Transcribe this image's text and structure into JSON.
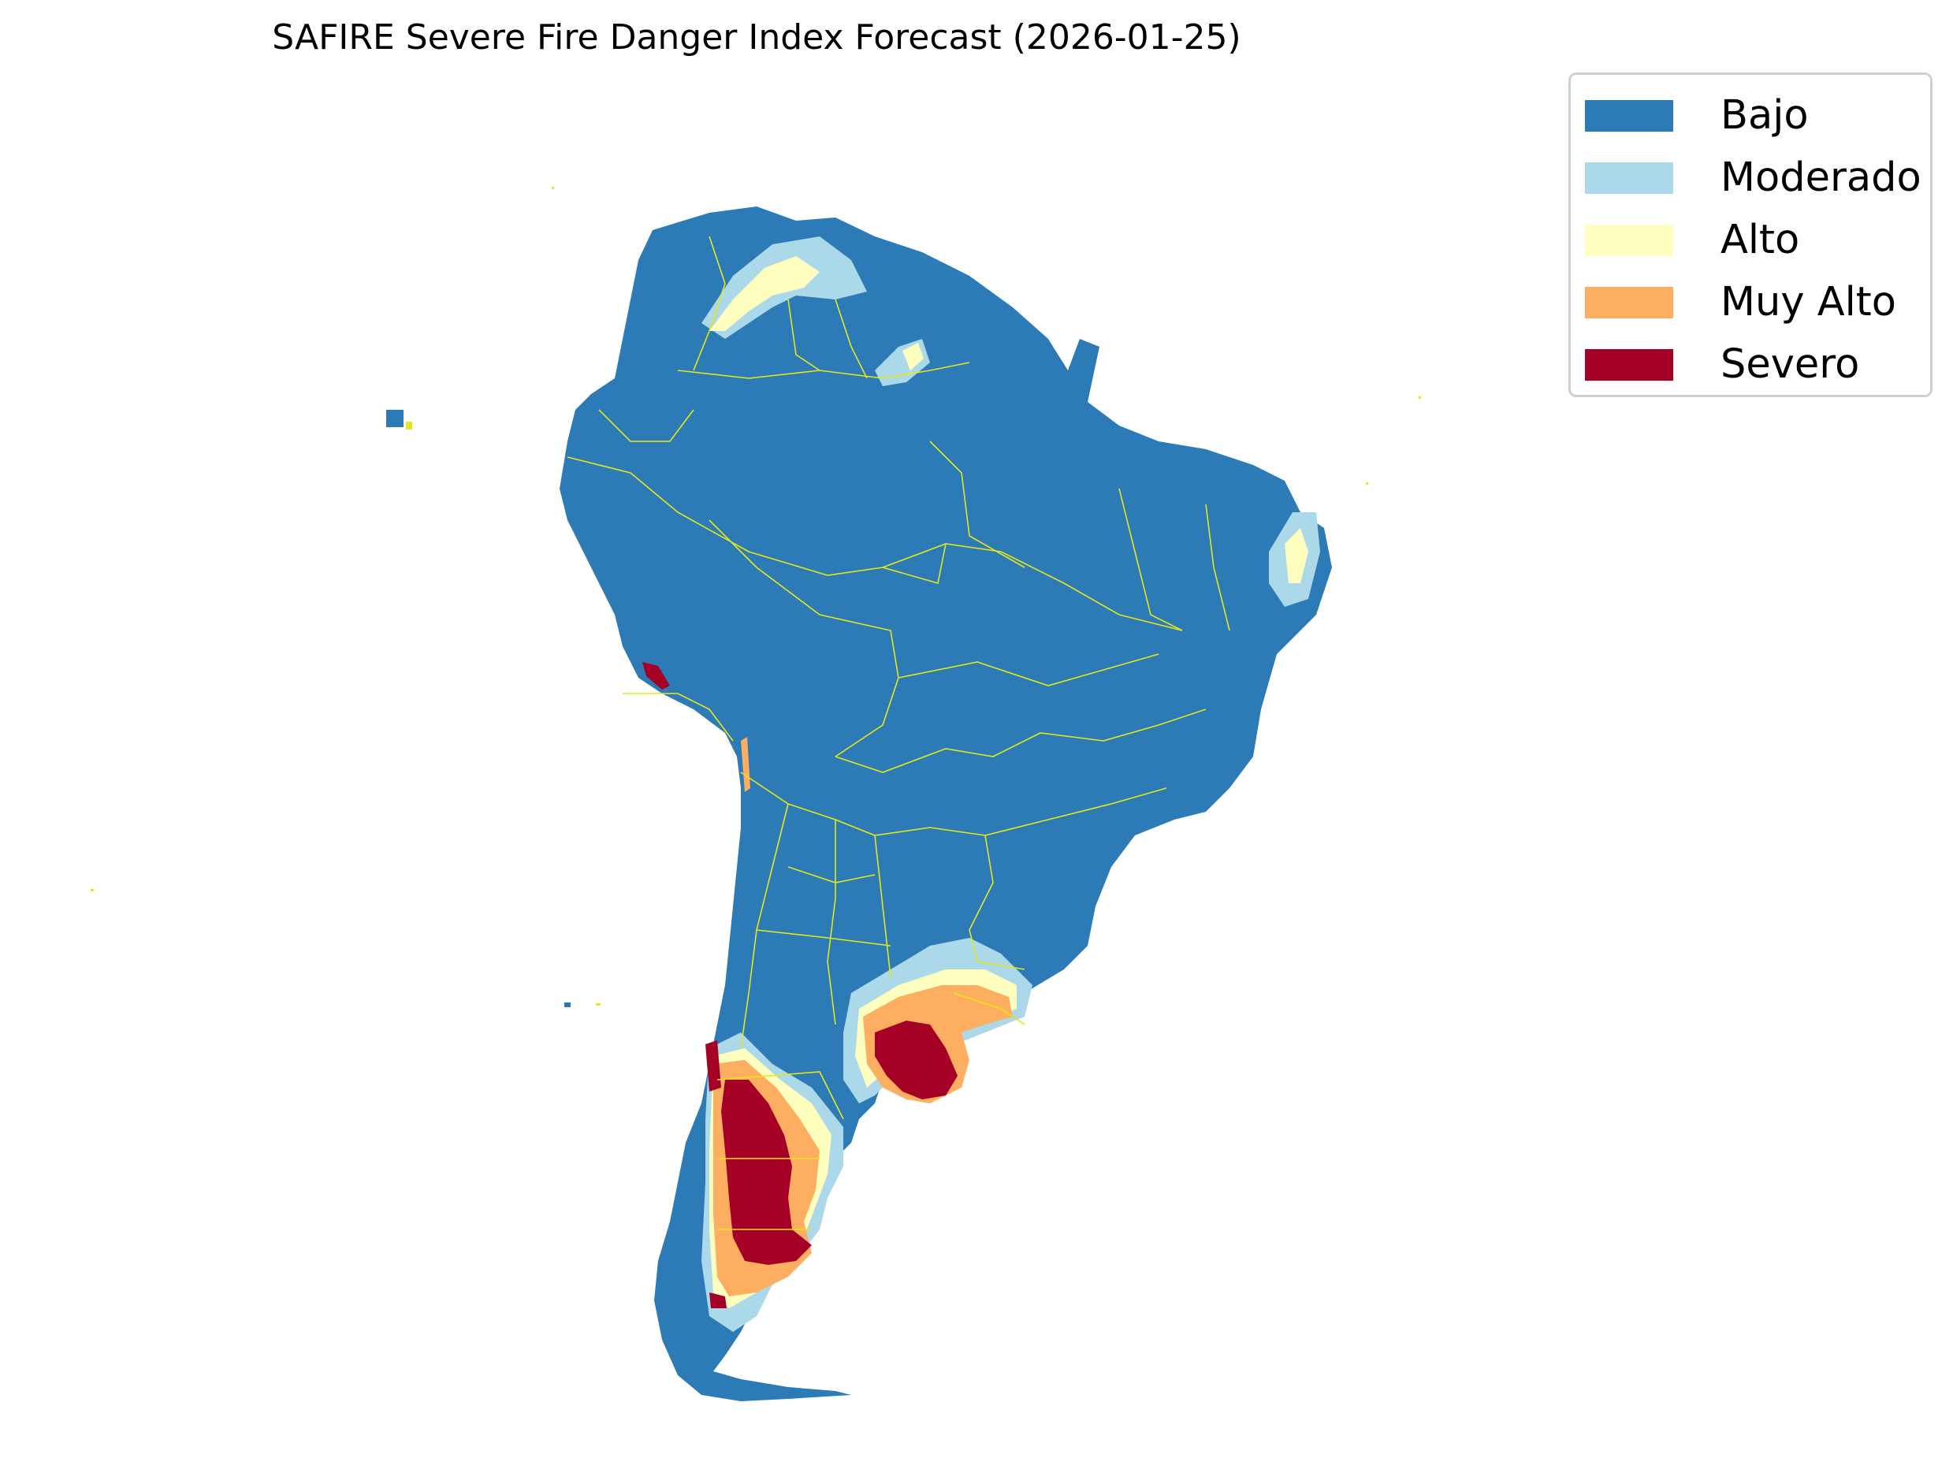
{
  "title": "SAFIRE Severe Fire Danger Index Forecast (2026-01-25)",
  "legend": {
    "items": [
      {
        "label": "Bajo",
        "color": "#2c7bb6"
      },
      {
        "label": "Moderado",
        "color": "#abd9e9"
      },
      {
        "label": "Alto",
        "color": "#ffffbf"
      },
      {
        "label": "Muy Alto",
        "color": "#fdae61"
      },
      {
        "label": "Severo",
        "color": "#a50026"
      }
    ]
  },
  "map": {
    "region": "South America",
    "border_color": "#e6e619",
    "background": "#ffffff"
  }
}
